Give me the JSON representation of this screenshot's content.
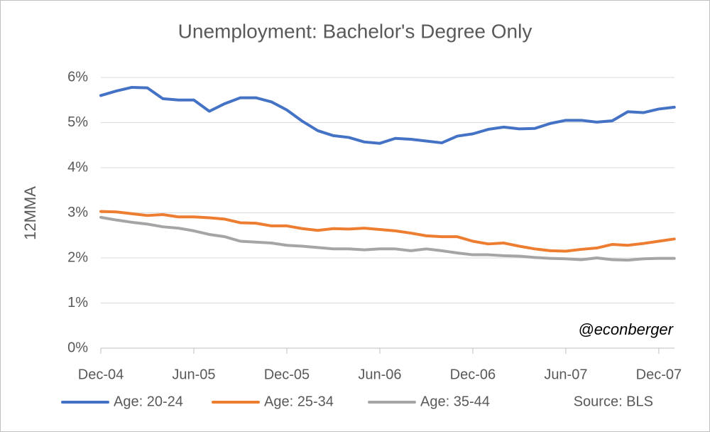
{
  "chart_data": {
    "type": "line",
    "title": "Unemployment: Bachelor's Degree Only",
    "y_label": "12MMA",
    "annotations": [
      "@econberger",
      "Source: BLS"
    ],
    "categories": [
      "Dec-04",
      null,
      null,
      null,
      null,
      null,
      "Jun-05",
      null,
      null,
      null,
      null,
      null,
      "Dec-05",
      null,
      null,
      null,
      null,
      null,
      "Jun-06",
      null,
      null,
      null,
      null,
      null,
      "Dec-06",
      null,
      null,
      null,
      null,
      null,
      "Jun-07",
      null,
      null,
      null,
      null,
      null,
      "Dec-07",
      null
    ],
    "series": [
      {
        "name": "Age: 20-24",
        "color": "#4472c4",
        "values": [
          5.6,
          5.7,
          5.78,
          5.77,
          5.53,
          5.5,
          5.5,
          5.25,
          5.42,
          5.55,
          5.55,
          5.46,
          5.28,
          5.03,
          4.82,
          4.71,
          4.67,
          4.57,
          4.54,
          4.65,
          4.63,
          4.59,
          4.55,
          4.7,
          4.75,
          4.85,
          4.9,
          4.86,
          4.87,
          4.98,
          5.05,
          5.05,
          5.01,
          5.04,
          5.24,
          5.22,
          5.3,
          5.34
        ]
      },
      {
        "name": "Age: 25-34",
        "color": "#ed7d31",
        "values": [
          3.03,
          3.02,
          2.98,
          2.94,
          2.96,
          2.91,
          2.91,
          2.89,
          2.86,
          2.78,
          2.77,
          2.71,
          2.71,
          2.65,
          2.61,
          2.65,
          2.64,
          2.66,
          2.63,
          2.6,
          2.55,
          2.49,
          2.47,
          2.47,
          2.37,
          2.31,
          2.33,
          2.26,
          2.2,
          2.16,
          2.15,
          2.19,
          2.22,
          2.3,
          2.28,
          2.32,
          2.37,
          2.42
        ]
      },
      {
        "name": "Age: 35-44",
        "color": "#a5a5a5",
        "values": [
          2.9,
          2.84,
          2.79,
          2.75,
          2.69,
          2.66,
          2.6,
          2.52,
          2.47,
          2.37,
          2.35,
          2.33,
          2.28,
          2.26,
          2.23,
          2.2,
          2.2,
          2.18,
          2.2,
          2.2,
          2.16,
          2.2,
          2.16,
          2.11,
          2.07,
          2.07,
          2.05,
          2.04,
          2.01,
          1.99,
          1.98,
          1.96,
          2.0,
          1.96,
          1.95,
          1.98,
          1.99,
          1.99
        ]
      }
    ],
    "ylim": [
      0,
      6
    ],
    "yticks": [
      {
        "value": 0,
        "label": "0%"
      },
      {
        "value": 1,
        "label": "1%"
      },
      {
        "value": 2,
        "label": "2%"
      },
      {
        "value": 3,
        "label": "3%"
      },
      {
        "value": 4,
        "label": "4%"
      },
      {
        "value": 5,
        "label": "5%"
      },
      {
        "value": 6,
        "label": "6%"
      }
    ],
    "grid": true,
    "legend": "bottom"
  }
}
